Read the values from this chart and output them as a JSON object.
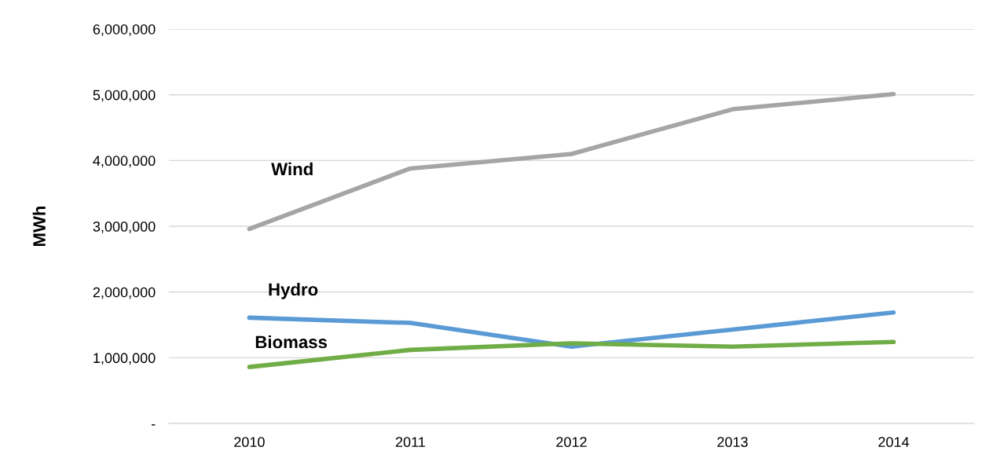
{
  "chart_data": {
    "type": "line",
    "ylabel": "MWh",
    "categories": [
      "2010",
      "2011",
      "2012",
      "2013",
      "2014"
    ],
    "series": [
      {
        "name": "Wind",
        "color": "#a5a5a5",
        "values": [
          2960000,
          3880000,
          4100000,
          4780000,
          5010000
        ]
      },
      {
        "name": "Hydro",
        "color": "#5b9bd5",
        "values": [
          1610000,
          1530000,
          1170000,
          1430000,
          1690000
        ]
      },
      {
        "name": "Biomass",
        "color": "#70ad47",
        "values": [
          860000,
          1120000,
          1220000,
          1170000,
          1240000
        ]
      }
    ],
    "ylim": [
      0,
      6000000
    ],
    "yticks": [
      {
        "value": 0,
        "label": "-"
      },
      {
        "value": 1000000,
        "label": "1,000,000"
      },
      {
        "value": 2000000,
        "label": "2,000,000"
      },
      {
        "value": 3000000,
        "label": "3,000,000"
      },
      {
        "value": 4000000,
        "label": "4,000,000"
      },
      {
        "value": 5000000,
        "label": "5,000,000"
      },
      {
        "value": 6000000,
        "label": "6,000,000"
      }
    ],
    "grid": "y",
    "legend": false,
    "marker": "none",
    "line_style": "solid"
  }
}
